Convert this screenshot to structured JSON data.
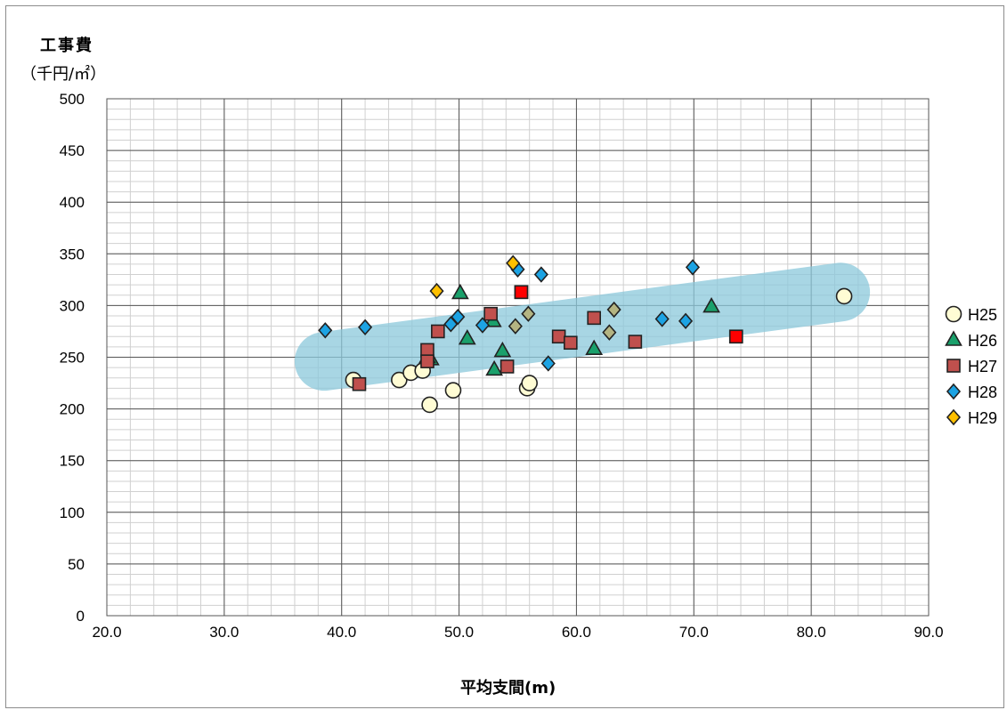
{
  "chart_data": {
    "type": "scatter",
    "title": "",
    "ylabel_line1": "工事費",
    "ylabel_line2": "（千円/㎡）",
    "xlabel": "平均支間(m)",
    "xlim": [
      20,
      90
    ],
    "ylim": [
      0,
      500
    ],
    "x_ticks": [
      "20.0",
      "30.0",
      "40.0",
      "50.0",
      "60.0",
      "70.0",
      "80.0",
      "90.0"
    ],
    "y_ticks": [
      "0",
      "50",
      "100",
      "150",
      "200",
      "250",
      "300",
      "350",
      "400",
      "450",
      "500"
    ],
    "grid": "major and minor",
    "legend_position": "right",
    "trend_band": {
      "x": [
        38.5,
        82.5
      ],
      "y": [
        246,
        313
      ]
    },
    "series": [
      {
        "name": "H25",
        "marker": "circle",
        "color": "#fffcd4",
        "points": [
          [
            41.0,
            228
          ],
          [
            44.9,
            228
          ],
          [
            45.9,
            235
          ],
          [
            46.9,
            237
          ],
          [
            47.5,
            204
          ],
          [
            49.5,
            218
          ],
          [
            55.8,
            220
          ],
          [
            56.0,
            225
          ],
          [
            82.8,
            309
          ]
        ]
      },
      {
        "name": "H26",
        "marker": "triangle",
        "color": "#1aa06b",
        "points": [
          [
            47.6,
            248
          ],
          [
            50.1,
            312
          ],
          [
            50.7,
            268
          ],
          [
            52.9,
            285
          ],
          [
            53.0,
            238
          ],
          [
            53.7,
            256
          ],
          [
            61.5,
            258
          ],
          [
            71.5,
            299
          ],
          [
            47.3,
            250
          ]
        ]
      },
      {
        "name": "H27",
        "marker": "square",
        "color": "#c0504d",
        "points": [
          [
            41.5,
            224
          ],
          [
            47.3,
            257
          ],
          [
            47.3,
            246
          ],
          [
            48.2,
            275
          ],
          [
            52.7,
            292
          ],
          [
            54.1,
            241
          ],
          [
            55.3,
            313
          ],
          [
            58.5,
            270
          ],
          [
            59.5,
            264
          ],
          [
            61.5,
            288
          ],
          [
            65.0,
            265
          ],
          [
            73.6,
            270
          ]
        ]
      },
      {
        "name": "H28",
        "marker": "diamond",
        "color": "#1ca3e3",
        "points": [
          [
            38.6,
            276
          ],
          [
            42.0,
            279
          ],
          [
            49.3,
            282
          ],
          [
            49.9,
            289
          ],
          [
            52.0,
            281
          ],
          [
            55.0,
            335
          ],
          [
            57.0,
            330
          ],
          [
            57.6,
            244
          ],
          [
            67.3,
            287
          ],
          [
            69.3,
            285
          ],
          [
            69.9,
            337
          ]
        ]
      },
      {
        "name": "H29",
        "marker": "diamond",
        "color": "#ffc000",
        "points": [
          [
            48.1,
            314
          ],
          [
            54.6,
            341
          ]
        ]
      },
      {
        "name": "",
        "marker": "diamond",
        "color": "#b4b482",
        "points": [
          [
            54.8,
            280
          ],
          [
            55.9,
            292
          ],
          [
            62.8,
            274
          ],
          [
            63.2,
            296
          ]
        ]
      },
      {
        "name": "",
        "marker": "square",
        "color": "#ff0000",
        "points": [
          [
            55.3,
            313
          ],
          [
            73.6,
            270
          ]
        ]
      }
    ]
  }
}
